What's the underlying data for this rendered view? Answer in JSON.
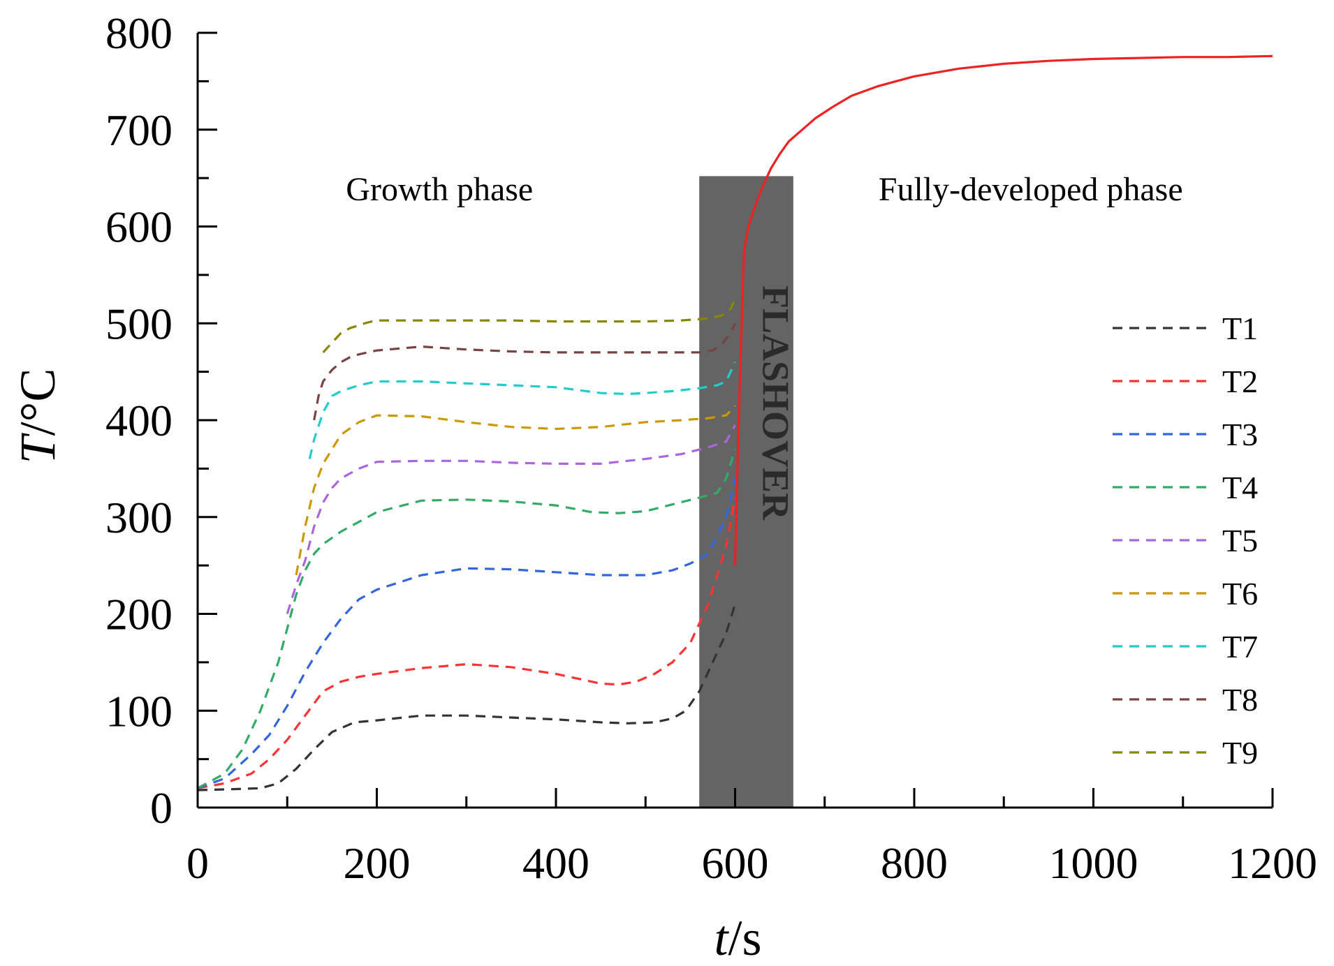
{
  "chart_data": {
    "type": "line",
    "title": "",
    "xlabel": {
      "italic": "t",
      "rest": "/s"
    },
    "ylabel": {
      "italic": "T",
      "rest": "/°C"
    },
    "xlim": [
      0,
      1200
    ],
    "ylim": [
      0,
      800
    ],
    "x_ticks": [
      0,
      200,
      400,
      600,
      800,
      1000,
      1200
    ],
    "y_ticks": [
      0,
      100,
      200,
      300,
      400,
      500,
      600,
      700,
      800
    ],
    "x_minor_step": 100,
    "y_minor_step": 50,
    "grid": false,
    "legend_position": "right",
    "annotations": {
      "growth": "Growth phase",
      "developed": "Fully-developed phase",
      "flashover": "FLASHOVER",
      "flashover_band": {
        "x_start": 560,
        "x_end": 665,
        "y_top": 652,
        "color": "#646464"
      }
    },
    "series": [
      {
        "name": "T1",
        "color": "#333333",
        "dashed": true,
        "x": [
          0,
          40,
          70,
          90,
          110,
          130,
          150,
          175,
          200,
          250,
          300,
          350,
          400,
          450,
          480,
          510,
          530,
          545,
          560,
          570,
          580,
          590,
          600
        ],
        "y": [
          18,
          19,
          20,
          25,
          40,
          60,
          78,
          88,
          90,
          95,
          95,
          93,
          91,
          88,
          87,
          88,
          92,
          100,
          120,
          140,
          160,
          180,
          210
        ]
      },
      {
        "name": "T2",
        "color": "#ff3333",
        "dashed": true,
        "x": [
          0,
          30,
          60,
          80,
          100,
          120,
          140,
          160,
          180,
          200,
          250,
          300,
          350,
          400,
          450,
          470,
          490,
          510,
          530,
          550,
          570,
          580,
          590,
          600
        ],
        "y": [
          20,
          25,
          35,
          50,
          70,
          95,
          120,
          130,
          135,
          138,
          144,
          148,
          145,
          138,
          128,
          127,
          130,
          138,
          150,
          170,
          210,
          240,
          270,
          320
        ]
      },
      {
        "name": "T3",
        "color": "#3366dd",
        "dashed": true,
        "x": [
          0,
          30,
          60,
          80,
          100,
          120,
          140,
          160,
          180,
          200,
          250,
          300,
          350,
          400,
          450,
          500,
          530,
          550,
          570,
          590,
          600
        ],
        "y": [
          20,
          30,
          55,
          75,
          105,
          140,
          170,
          195,
          215,
          225,
          240,
          247,
          246,
          243,
          240,
          240,
          245,
          252,
          262,
          300,
          340
        ]
      },
      {
        "name": "T4",
        "color": "#33aa66",
        "dashed": true,
        "x": [
          0,
          30,
          50,
          70,
          90,
          100,
          110,
          120,
          130,
          140,
          160,
          180,
          200,
          250,
          300,
          350,
          400,
          440,
          470,
          500,
          530,
          560,
          580,
          590,
          600
        ],
        "y": [
          20,
          35,
          60,
          100,
          150,
          185,
          220,
          245,
          262,
          272,
          285,
          295,
          305,
          317,
          318,
          316,
          312,
          305,
          304,
          306,
          313,
          320,
          325,
          340,
          370
        ]
      },
      {
        "name": "T5",
        "color": "#aa66dd",
        "dashed": true,
        "x": [
          100,
          110,
          120,
          130,
          140,
          150,
          160,
          180,
          200,
          250,
          300,
          350,
          400,
          450,
          500,
          540,
          570,
          590,
          600
        ],
        "y": [
          200,
          230,
          255,
          290,
          315,
          330,
          340,
          350,
          357,
          358,
          358,
          356,
          355,
          355,
          360,
          365,
          372,
          378,
          395
        ]
      },
      {
        "name": "T6",
        "color": "#cc9900",
        "dashed": true,
        "x": [
          110,
          115,
          120,
          130,
          140,
          150,
          160,
          180,
          200,
          250,
          300,
          350,
          400,
          450,
          500,
          540,
          570,
          590,
          600
        ],
        "y": [
          240,
          265,
          290,
          330,
          355,
          370,
          385,
          398,
          405,
          404,
          398,
          393,
          391,
          393,
          398,
          400,
          402,
          405,
          415
        ]
      },
      {
        "name": "T7",
        "color": "#22cccc",
        "dashed": true,
        "x": [
          125,
          130,
          140,
          150,
          160,
          180,
          200,
          250,
          300,
          350,
          400,
          450,
          480,
          500,
          530,
          560,
          580,
          590,
          600
        ],
        "y": [
          360,
          380,
          408,
          425,
          430,
          436,
          440,
          440,
          438,
          436,
          434,
          428,
          427,
          428,
          430,
          433,
          436,
          440,
          460
        ]
      },
      {
        "name": "T8",
        "color": "#774444",
        "dashed": true,
        "x": [
          130,
          135,
          140,
          150,
          160,
          170,
          180,
          200,
          250,
          300,
          350,
          400,
          450,
          500,
          540,
          560,
          575,
          585,
          595,
          600
        ],
        "y": [
          400,
          425,
          440,
          452,
          460,
          465,
          468,
          472,
          476,
          473,
          471,
          470,
          470,
          470,
          470,
          470,
          472,
          478,
          490,
          500
        ]
      },
      {
        "name": "T9",
        "color": "#888800",
        "dashed": true,
        "x": [
          140,
          150,
          160,
          170,
          180,
          190,
          200,
          250,
          300,
          350,
          400,
          450,
          500,
          540,
          570,
          585,
          595,
          600
        ],
        "y": [
          470,
          480,
          490,
          495,
          498,
          501,
          503,
          503,
          503,
          503,
          502,
          502,
          502,
          503,
          505,
          508,
          515,
          525
        ]
      },
      {
        "name": "",
        "color": "#ee2222",
        "dashed": false,
        "x": [
          600,
          602,
          605,
          608,
          610,
          615,
          620,
          630,
          640,
          650,
          660,
          675,
          690,
          710,
          730,
          760,
          800,
          850,
          900,
          950,
          1000,
          1050,
          1100,
          1150,
          1200
        ],
        "y": [
          250,
          330,
          430,
          520,
          575,
          600,
          615,
          640,
          660,
          675,
          688,
          700,
          712,
          724,
          735,
          745,
          755,
          763,
          768,
          771,
          773,
          774,
          775,
          775,
          776
        ]
      }
    ]
  }
}
